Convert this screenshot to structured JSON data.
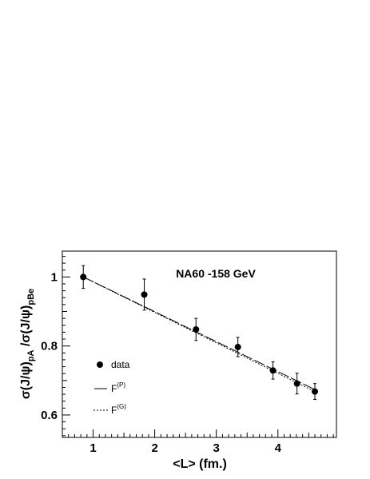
{
  "chart_data": {
    "type": "scatter",
    "title": "NA60 -158 GeV",
    "xlabel": "<L> (fm.)",
    "ylabel": {
      "main": "σ(J/ψ)",
      "sub1": "pA",
      "mid": " /σ(J/ψ)",
      "sub2": "pBe"
    },
    "xlim": [
      0.5,
      4.95
    ],
    "ylim": [
      0.535,
      1.075
    ],
    "x_ticks": [
      1,
      2,
      3,
      4
    ],
    "x_tick_labels": [
      "1",
      "2",
      "3",
      "4"
    ],
    "y_ticks": [
      0.6,
      0.8,
      1.0
    ],
    "y_tick_labels": [
      "0.6",
      "0.8",
      "1"
    ],
    "grid": false,
    "legend_position": "left",
    "series": [
      {
        "name": "data",
        "kind": "points",
        "x": [
          0.84,
          1.83,
          2.67,
          3.35,
          3.92,
          4.31,
          4.6
        ],
        "y": [
          1.0,
          0.949,
          0.848,
          0.797,
          0.729,
          0.691,
          0.668
        ],
        "yerr": [
          0.033,
          0.045,
          0.032,
          0.028,
          0.025,
          0.03,
          0.023
        ]
      },
      {
        "name": "F",
        "sup": "(P)",
        "kind": "line",
        "style": "long-dash",
        "x": [
          0.84,
          4.62
        ],
        "y": [
          1.0,
          0.672
        ]
      },
      {
        "name": "F",
        "sup": "(G)",
        "kind": "line",
        "style": "dotted",
        "x": [
          0.84,
          4.62
        ],
        "y": [
          1.0,
          0.666
        ]
      }
    ]
  }
}
